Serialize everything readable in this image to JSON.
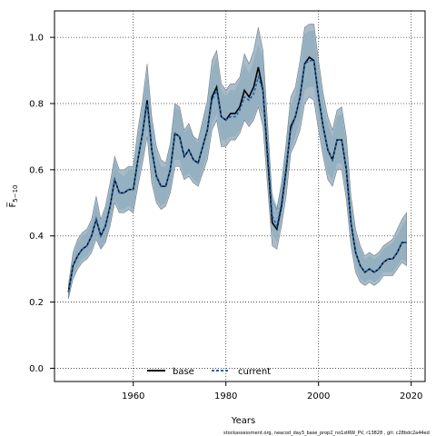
{
  "chart_data": {
    "type": "line",
    "xlabel": "Years",
    "ylabel": "F̅",
    "ylabel_subscript": "5−10",
    "xlim": [
      1943,
      2023
    ],
    "ylim": [
      -0.04,
      1.08
    ],
    "x_ticks": [
      1960,
      1980,
      2000,
      2020
    ],
    "y_ticks": [
      0.0,
      0.2,
      0.4,
      0.6,
      0.8,
      1.0
    ],
    "x_tick_labels": [
      "1960",
      "1980",
      "2000",
      "2020"
    ],
    "y_tick_labels": [
      "0.0",
      "0.2",
      "0.4",
      "0.6",
      "0.8",
      "1.0"
    ],
    "grid": true,
    "legend_position": "bottom-center",
    "footer_text": "stockassessment.org, neacod_day3_base_prop2_no1stRW_PV, r13828 , git: c28bdc2a44ed",
    "colors": {
      "band_base": "#8ea6b6",
      "band_current": "#9ecae1",
      "line_base": "#000000",
      "line_current": "#1f5fa8"
    },
    "x": [
      1946,
      1947,
      1948,
      1949,
      1950,
      1951,
      1952,
      1953,
      1954,
      1955,
      1956,
      1957,
      1958,
      1959,
      1960,
      1961,
      1962,
      1963,
      1964,
      1965,
      1966,
      1967,
      1968,
      1969,
      1970,
      1971,
      1972,
      1973,
      1974,
      1975,
      1976,
      1977,
      1978,
      1979,
      1980,
      1981,
      1982,
      1983,
      1984,
      1985,
      1986,
      1987,
      1988,
      1989,
      1990,
      1991,
      1992,
      1993,
      1994,
      1995,
      1996,
      1997,
      1998,
      1999,
      2000,
      2001,
      2002,
      2003,
      2004,
      2005,
      2006,
      2007,
      2008,
      2009,
      2010,
      2011,
      2012,
      2013,
      2014,
      2015,
      2016,
      2017,
      2018,
      2019
    ],
    "series": [
      {
        "name": "base",
        "values": [
          0.23,
          0.31,
          0.34,
          0.36,
          0.37,
          0.4,
          0.45,
          0.4,
          0.43,
          0.49,
          0.57,
          0.53,
          0.53,
          0.54,
          0.54,
          0.63,
          0.71,
          0.81,
          0.66,
          0.58,
          0.55,
          0.55,
          0.6,
          0.71,
          0.7,
          0.64,
          0.66,
          0.63,
          0.62,
          0.67,
          0.72,
          0.82,
          0.85,
          0.76,
          0.75,
          0.77,
          0.77,
          0.79,
          0.84,
          0.82,
          0.85,
          0.91,
          0.84,
          0.64,
          0.44,
          0.42,
          0.49,
          0.6,
          0.73,
          0.76,
          0.82,
          0.92,
          0.94,
          0.93,
          0.82,
          0.73,
          0.66,
          0.63,
          0.69,
          0.69,
          0.6,
          0.44,
          0.35,
          0.31,
          0.29,
          0.3,
          0.29,
          0.3,
          0.32,
          0.33,
          0.33,
          0.35,
          0.38,
          0.38
        ],
        "lower": [
          0.21,
          0.27,
          0.3,
          0.32,
          0.33,
          0.35,
          0.39,
          0.36,
          0.38,
          0.43,
          0.5,
          0.47,
          0.47,
          0.48,
          0.47,
          0.55,
          0.62,
          0.7,
          0.56,
          0.5,
          0.48,
          0.49,
          0.53,
          0.61,
          0.61,
          0.57,
          0.58,
          0.56,
          0.55,
          0.59,
          0.63,
          0.72,
          0.75,
          0.67,
          0.67,
          0.69,
          0.69,
          0.71,
          0.75,
          0.73,
          0.75,
          0.79,
          0.73,
          0.55,
          0.37,
          0.36,
          0.43,
          0.52,
          0.65,
          0.68,
          0.72,
          0.8,
          0.82,
          0.81,
          0.72,
          0.64,
          0.57,
          0.55,
          0.6,
          0.6,
          0.51,
          0.37,
          0.29,
          0.26,
          0.25,
          0.26,
          0.25,
          0.26,
          0.28,
          0.28,
          0.28,
          0.3,
          0.32,
          0.31
        ],
        "upper": [
          0.25,
          0.35,
          0.39,
          0.41,
          0.42,
          0.45,
          0.52,
          0.45,
          0.49,
          0.56,
          0.64,
          0.6,
          0.6,
          0.61,
          0.61,
          0.72,
          0.81,
          0.92,
          0.76,
          0.67,
          0.63,
          0.62,
          0.68,
          0.8,
          0.79,
          0.72,
          0.74,
          0.7,
          0.69,
          0.75,
          0.81,
          0.93,
          0.96,
          0.86,
          0.84,
          0.86,
          0.86,
          0.88,
          0.95,
          0.92,
          0.96,
          1.03,
          0.96,
          0.74,
          0.51,
          0.48,
          0.56,
          0.68,
          0.82,
          0.85,
          0.93,
          1.03,
          1.04,
          1.04,
          0.93,
          0.83,
          0.76,
          0.72,
          0.78,
          0.79,
          0.7,
          0.52,
          0.42,
          0.37,
          0.34,
          0.35,
          0.34,
          0.35,
          0.37,
          0.38,
          0.39,
          0.42,
          0.45,
          0.47
        ]
      },
      {
        "name": "current",
        "values": [
          0.23,
          0.31,
          0.34,
          0.36,
          0.37,
          0.4,
          0.45,
          0.4,
          0.43,
          0.49,
          0.57,
          0.53,
          0.53,
          0.54,
          0.54,
          0.63,
          0.71,
          0.8,
          0.66,
          0.58,
          0.55,
          0.55,
          0.6,
          0.71,
          0.7,
          0.64,
          0.66,
          0.63,
          0.62,
          0.67,
          0.72,
          0.81,
          0.84,
          0.76,
          0.75,
          0.76,
          0.76,
          0.78,
          0.82,
          0.81,
          0.83,
          0.88,
          0.84,
          0.66,
          0.46,
          0.43,
          0.5,
          0.61,
          0.72,
          0.76,
          0.82,
          0.92,
          0.93,
          0.93,
          0.82,
          0.73,
          0.66,
          0.63,
          0.69,
          0.69,
          0.6,
          0.44,
          0.35,
          0.31,
          0.29,
          0.3,
          0.29,
          0.3,
          0.32,
          0.33,
          0.33,
          0.35,
          0.38,
          0.38
        ],
        "lower": [
          0.21,
          0.28,
          0.31,
          0.33,
          0.34,
          0.36,
          0.4,
          0.36,
          0.39,
          0.44,
          0.51,
          0.48,
          0.48,
          0.49,
          0.48,
          0.57,
          0.64,
          0.72,
          0.58,
          0.51,
          0.49,
          0.5,
          0.54,
          0.63,
          0.63,
          0.58,
          0.59,
          0.57,
          0.56,
          0.6,
          0.65,
          0.74,
          0.77,
          0.69,
          0.69,
          0.7,
          0.7,
          0.72,
          0.75,
          0.74,
          0.76,
          0.8,
          0.76,
          0.59,
          0.41,
          0.38,
          0.45,
          0.55,
          0.66,
          0.7,
          0.75,
          0.84,
          0.85,
          0.85,
          0.75,
          0.66,
          0.59,
          0.57,
          0.62,
          0.62,
          0.53,
          0.39,
          0.31,
          0.27,
          0.26,
          0.27,
          0.26,
          0.27,
          0.29,
          0.29,
          0.29,
          0.31,
          0.33,
          0.32
        ],
        "upper": [
          0.25,
          0.34,
          0.38,
          0.4,
          0.41,
          0.44,
          0.5,
          0.44,
          0.48,
          0.54,
          0.63,
          0.59,
          0.58,
          0.6,
          0.6,
          0.7,
          0.79,
          0.89,
          0.74,
          0.65,
          0.61,
          0.61,
          0.67,
          0.79,
          0.78,
          0.71,
          0.73,
          0.7,
          0.68,
          0.74,
          0.8,
          0.9,
          0.94,
          0.84,
          0.82,
          0.84,
          0.84,
          0.87,
          0.92,
          0.89,
          0.93,
          0.98,
          0.94,
          0.75,
          0.53,
          0.49,
          0.56,
          0.68,
          0.79,
          0.83,
          0.9,
          1.01,
          1.02,
          1.02,
          0.9,
          0.81,
          0.74,
          0.7,
          0.76,
          0.77,
          0.68,
          0.5,
          0.4,
          0.36,
          0.33,
          0.34,
          0.33,
          0.34,
          0.36,
          0.37,
          0.38,
          0.4,
          0.43,
          0.45
        ]
      }
    ]
  }
}
